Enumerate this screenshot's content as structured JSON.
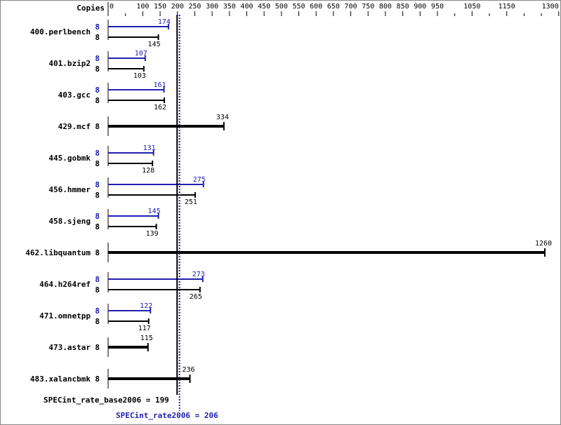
{
  "chart_data": {
    "type": "bar",
    "orientation": "horizontal",
    "copies_header": "Copies",
    "xlim": [
      0,
      1300
    ],
    "tick_labels": [
      0,
      100,
      150,
      200,
      250,
      300,
      350,
      400,
      450,
      500,
      550,
      600,
      650,
      700,
      750,
      800,
      850,
      900,
      950,
      1050,
      1150,
      1300
    ],
    "minor_ticks": [
      50,
      1000,
      1100,
      1200,
      1250
    ],
    "colors": {
      "base": "#000000",
      "peak": "#2020b0"
    },
    "benchmarks": [
      {
        "name": "400.perlbench",
        "peak_copies": 8,
        "peak": 174,
        "base_copies": 8,
        "base": 145
      },
      {
        "name": "401.bzip2",
        "peak_copies": 8,
        "peak": 107,
        "base_copies": 8,
        "base": 103
      },
      {
        "name": "403.gcc",
        "peak_copies": 8,
        "peak": 161,
        "base_copies": 8,
        "base": 162
      },
      {
        "name": "429.mcf",
        "base_copies": 8,
        "base": 334
      },
      {
        "name": "445.gobmk",
        "peak_copies": 8,
        "peak": 131,
        "base_copies": 8,
        "base": 128
      },
      {
        "name": "456.hmmer",
        "peak_copies": 8,
        "peak": 275,
        "base_copies": 8,
        "base": 251
      },
      {
        "name": "458.sjeng",
        "peak_copies": 8,
        "peak": 145,
        "base_copies": 8,
        "base": 139
      },
      {
        "name": "462.libquantum",
        "base_copies": 8,
        "base": 1260
      },
      {
        "name": "464.h264ref",
        "peak_copies": 8,
        "peak": 273,
        "base_copies": 8,
        "base": 265
      },
      {
        "name": "471.omnetpp",
        "peak_copies": 8,
        "peak": 122,
        "base_copies": 8,
        "base": 117
      },
      {
        "name": "473.astar",
        "base_copies": 8,
        "base": 115
      },
      {
        "name": "483.xalancbmk",
        "base_copies": 8,
        "base": 236
      }
    ],
    "base_summary": {
      "label": "SPECint_rate_base2006 = 199",
      "value": 199
    },
    "peak_summary": {
      "label": "SPECint_rate2006 = 206",
      "value": 206
    }
  }
}
